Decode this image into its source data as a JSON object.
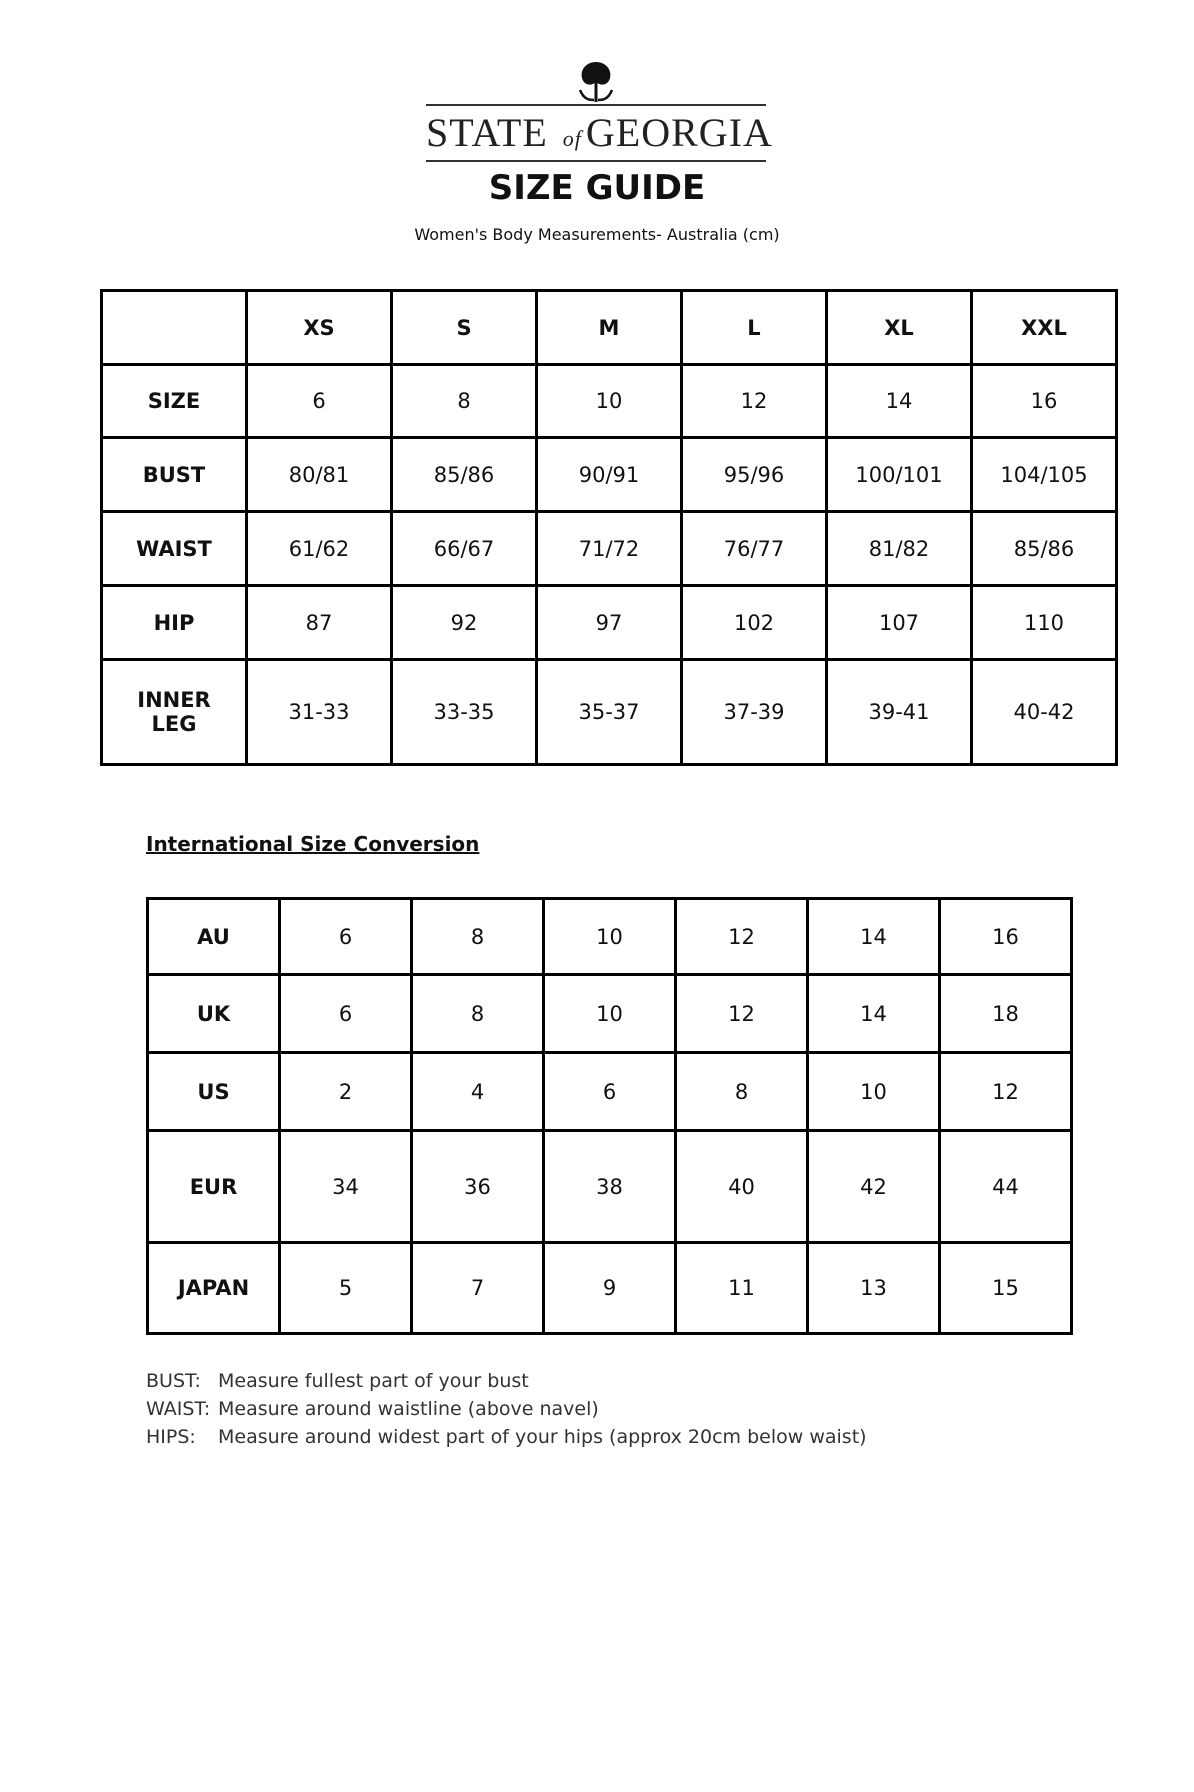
{
  "brand": {
    "name_left": "STATE",
    "name_mid": "of",
    "name_right": "GEORGIA"
  },
  "title": "SIZE GUIDE",
  "subtitle": "Women's Body Measurements- Australia (cm)",
  "measurements": {
    "columns": [
      "",
      "XS",
      "S",
      "M",
      "L",
      "XL",
      "XXL"
    ],
    "rows": [
      {
        "label": "SIZE",
        "values": [
          "6",
          "8",
          "10",
          "12",
          "14",
          "16"
        ]
      },
      {
        "label": "BUST",
        "values": [
          "80/81",
          "85/86",
          "90/91",
          "95/96",
          "100/101",
          "104/105"
        ]
      },
      {
        "label": "WAIST",
        "values": [
          "61/62",
          "66/67",
          "71/72",
          "76/77",
          "81/82",
          "85/86"
        ]
      },
      {
        "label": "HIP",
        "values": [
          "87",
          "92",
          "97",
          "102",
          "107",
          "110"
        ]
      },
      {
        "label": "INNER LEG",
        "values": [
          "31-33",
          "33-35",
          "35-37",
          "37-39",
          "39-41",
          "40-42"
        ]
      }
    ]
  },
  "conversion": {
    "heading": "International Size Conversion",
    "rows": [
      {
        "label": "AU",
        "values": [
          "6",
          "8",
          "10",
          "12",
          "14",
          "16"
        ]
      },
      {
        "label": "UK",
        "values": [
          "6",
          "8",
          "10",
          "12",
          "14",
          "18"
        ]
      },
      {
        "label": "US",
        "values": [
          "2",
          "4",
          "6",
          "8",
          "10",
          "12"
        ]
      },
      {
        "label": "EUR",
        "values": [
          "34",
          "36",
          "38",
          "40",
          "42",
          "44"
        ]
      },
      {
        "label": "JAPAN",
        "values": [
          "5",
          "7",
          "9",
          "11",
          "13",
          "15"
        ]
      }
    ]
  },
  "notes": [
    {
      "key": "BUST:",
      "text": "Measure fullest part of your bust"
    },
    {
      "key": "WAIST:",
      "text": "Measure around waistline (above navel)"
    },
    {
      "key": "HIPS:",
      "text": "Measure around widest part of your hips (approx 20cm below waist)"
    }
  ]
}
